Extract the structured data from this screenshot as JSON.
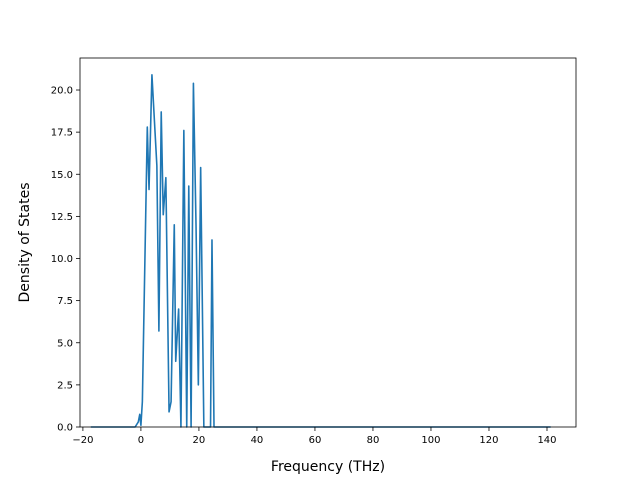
{
  "chart_data": {
    "type": "line",
    "title": "",
    "xlabel": "Frequency (THz)",
    "ylabel": "Density of States",
    "xlim": [
      -21.0,
      150.0
    ],
    "ylim": [
      0,
      21.9
    ],
    "x_ticks": [
      -20,
      0,
      20,
      40,
      60,
      80,
      100,
      120,
      140
    ],
    "x_tick_labels": [
      "−20",
      "0",
      "20",
      "40",
      "60",
      "80",
      "100",
      "120",
      "140"
    ],
    "y_ticks": [
      0.0,
      2.5,
      5.0,
      7.5,
      10.0,
      12.5,
      15.0,
      17.5,
      20.0
    ],
    "y_tick_labels": [
      "0.0",
      "2.5",
      "5.0",
      "7.5",
      "10.0",
      "12.5",
      "15.0",
      "17.5",
      "20.0"
    ],
    "grid": false,
    "legend": "none",
    "series": [
      {
        "color": "#1f77b4",
        "points": [
          [
            -17.0,
            0.0
          ],
          [
            -2.0,
            0.0
          ],
          [
            -0.9,
            0.3
          ],
          [
            -0.4,
            0.75
          ],
          [
            0.0,
            0.1
          ],
          [
            0.5,
            1.5
          ],
          [
            2.2,
            17.8
          ],
          [
            2.8,
            14.1
          ],
          [
            3.8,
            20.9
          ],
          [
            5.5,
            15.5
          ],
          [
            6.2,
            5.7
          ],
          [
            7.0,
            18.7
          ],
          [
            7.7,
            12.6
          ],
          [
            8.6,
            14.8
          ],
          [
            9.7,
            0.9
          ],
          [
            10.4,
            1.5
          ],
          [
            11.5,
            12.0
          ],
          [
            12.0,
            3.9
          ],
          [
            13.0,
            7.0
          ],
          [
            13.8,
            0.0
          ],
          [
            14.8,
            17.6
          ],
          [
            15.8,
            0.0
          ],
          [
            16.5,
            14.3
          ],
          [
            17.3,
            0.0
          ],
          [
            18.1,
            20.4
          ],
          [
            19.0,
            12.0
          ],
          [
            19.8,
            2.5
          ],
          [
            20.6,
            15.4
          ],
          [
            21.7,
            0.0
          ],
          [
            24.0,
            0.0
          ],
          [
            24.5,
            11.1
          ],
          [
            25.2,
            0.0
          ],
          [
            141.0,
            0.0
          ]
        ]
      }
    ]
  }
}
